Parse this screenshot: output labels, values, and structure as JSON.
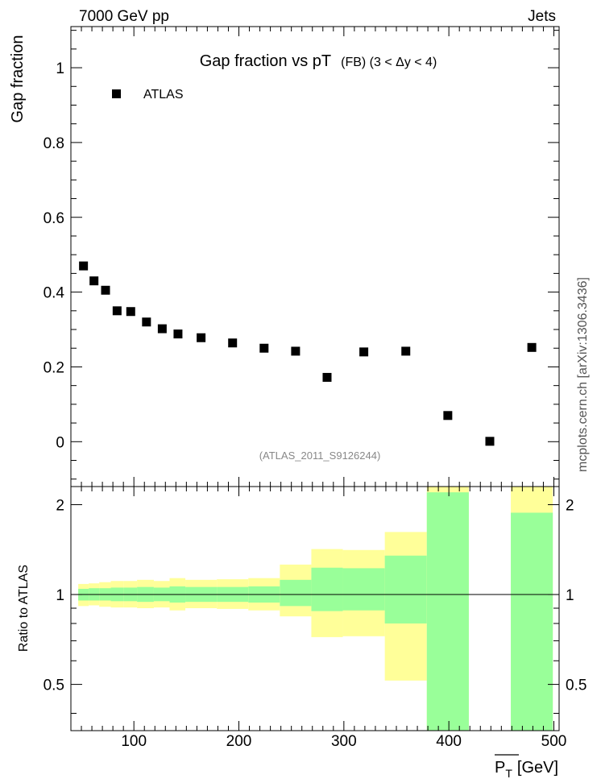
{
  "header": {
    "left": "7000 GeV pp",
    "right": "Jets",
    "side": "mcplots.cern.ch [arXiv:1306.3436]"
  },
  "chart_data": [
    {
      "type": "scatter",
      "title_main": "Gap fraction vs pT",
      "title_sub": "(FB) (3 < Δy < 4)",
      "ylabel": "Gap fraction",
      "ylim": [
        -0.12,
        1.11
      ],
      "xlim": [
        40,
        505
      ],
      "yticks": [
        0,
        0.2,
        0.4,
        0.6,
        0.8,
        1
      ],
      "ytick_labels": [
        "0",
        "0.2",
        "0.4",
        "0.6",
        "0.8",
        "1"
      ],
      "legend": {
        "label": "ATLAS",
        "placement": "top-left"
      },
      "analysis_label": "(ATLAS_2011_S9126244)",
      "series": [
        {
          "name": "ATLAS",
          "x": [
            52,
            62,
            73,
            84,
            97,
            112,
            127,
            142,
            164,
            194,
            224,
            254,
            284,
            319,
            359,
            399,
            439,
            479
          ],
          "y": [
            0.47,
            0.43,
            0.405,
            0.35,
            0.348,
            0.32,
            0.302,
            0.288,
            0.278,
            0.264,
            0.25,
            0.242,
            0.172,
            0.24,
            0.242,
            0.07,
            0.001,
            0.252
          ]
        }
      ],
      "grid": false
    },
    {
      "type": "area",
      "ylabel": "Ratio to ATLAS",
      "xlabel": "P_T [GeV]",
      "xlabel_main": "P",
      "xlabel_sub": "T",
      "xlabel_unit": "[GeV]",
      "ylim": [
        0.35,
        2.3
      ],
      "xlim": [
        40,
        505
      ],
      "yticks": [
        0.5,
        1,
        2
      ],
      "ytick_labels": [
        "0.5",
        "1",
        "2"
      ],
      "xticks": [
        100,
        200,
        300,
        400,
        500
      ],
      "xtick_labels": [
        "100",
        "200",
        "300",
        "400",
        "500"
      ],
      "reference_line": 1,
      "bins": [
        [
          47,
          57,
          0.915,
          1.085,
          0.955,
          1.045
        ],
        [
          57,
          67,
          0.92,
          1.09,
          0.955,
          1.05
        ],
        [
          67,
          78,
          0.91,
          1.1,
          0.955,
          1.05
        ],
        [
          78,
          90,
          0.905,
          1.11,
          0.95,
          1.055
        ],
        [
          90,
          103,
          0.905,
          1.11,
          0.95,
          1.055
        ],
        [
          103,
          119,
          0.9,
          1.12,
          0.945,
          1.06
        ],
        [
          119,
          134,
          0.905,
          1.11,
          0.95,
          1.055
        ],
        [
          134,
          149,
          0.885,
          1.135,
          0.94,
          1.065
        ],
        [
          149,
          179,
          0.9,
          1.12,
          0.945,
          1.06
        ],
        [
          179,
          209,
          0.895,
          1.125,
          0.945,
          1.06
        ],
        [
          209,
          239,
          0.885,
          1.135,
          0.94,
          1.065
        ],
        [
          239,
          269,
          0.845,
          1.26,
          0.915,
          1.12
        ],
        [
          269,
          299,
          0.72,
          1.42,
          0.88,
          1.23
        ],
        [
          299,
          339,
          0.725,
          1.41,
          0.885,
          1.225
        ],
        [
          339,
          379,
          0.515,
          1.62,
          0.8,
          1.35
        ],
        [
          379,
          419,
          0.35,
          2.3,
          0.35,
          2.2
        ],
        [
          459,
          499,
          0.35,
          2.3,
          0.35,
          1.88
        ]
      ],
      "colors": {
        "outer": "#ffff99",
        "inner": "#99ff99"
      }
    }
  ]
}
